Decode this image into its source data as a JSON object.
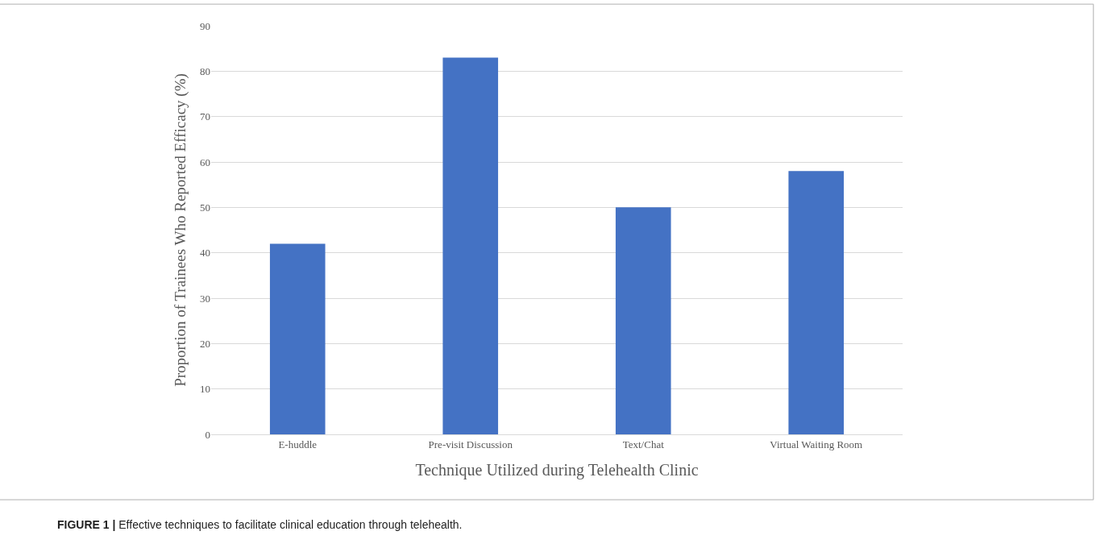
{
  "chart_data": {
    "type": "bar",
    "categories": [
      "E-huddle",
      "Pre-visit Discussion",
      "Text/Chat",
      "Virtual Waiting Room"
    ],
    "values": [
      42,
      83,
      50,
      58
    ],
    "color": "#4472c4",
    "xlabel": "Technique Utilized during Telehealth Clinic",
    "ylabel": "Proportion of Trainees Who Reported Efficacy (%)",
    "ylim": [
      0,
      90
    ],
    "yticks": [
      0,
      10,
      20,
      30,
      40,
      50,
      60,
      70,
      80,
      90
    ],
    "grid": "y",
    "annotations": [
      "FIGURE 1 | Effective techniques to facilitate clinical education through telehealth."
    ]
  }
}
